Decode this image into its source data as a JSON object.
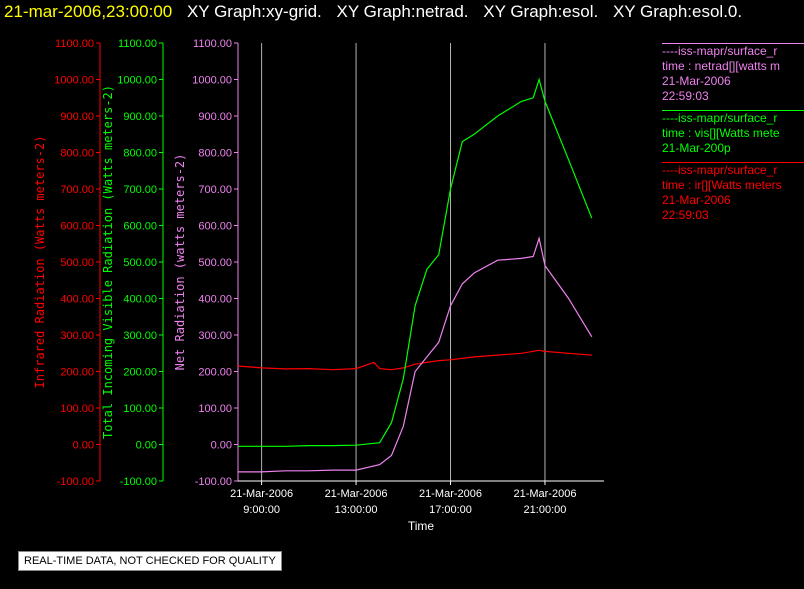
{
  "header": {
    "timestamp": "21-mar-2006,23:00:00",
    "graphs": [
      "XY Graph:xy-grid.",
      "XY Graph:netrad.",
      "XY Graph:esol.",
      "XY Graph:esol.0."
    ]
  },
  "footer": {
    "quality_note": "REAL-TIME DATA, NOT CHECKED FOR QUALITY"
  },
  "colors": {
    "ir": "#ff0000",
    "vis": "#00ff00",
    "net": "#ee82ee",
    "axis": "#ffffff",
    "grid": "#b3b3b3"
  },
  "legend": [
    {
      "color": "#ee82ee",
      "lines": [
        "----iss-mapr/surface_r",
        "time : netrad[][watts m",
        "21-Mar-2006",
        "22:59:03"
      ]
    },
    {
      "color": "#00ff00",
      "lines": [
        "----iss-mapr/surface_r",
        "time : vis[][Watts mete",
        "21-Mar-200p"
      ]
    },
    {
      "color": "#ff0000",
      "lines": [
        "----iss-mapr/surface_r",
        "time : ir[][Watts meters",
        "21-Mar-2006",
        "22:59:03"
      ]
    }
  ],
  "chart_data": {
    "type": "line",
    "xlabel": "Time",
    "xlim": [
      "2006-03-21T08:00",
      "2006-03-21T23:30"
    ],
    "x_ticks": [
      {
        "value": "2006-03-21T09:00",
        "date": "21-Mar-2006",
        "time": "9:00:00"
      },
      {
        "value": "2006-03-21T13:00",
        "date": "21-Mar-2006",
        "time": "13:00:00"
      },
      {
        "value": "2006-03-21T17:00",
        "date": "21-Mar-2006",
        "time": "17:00:00"
      },
      {
        "value": "2006-03-21T21:00",
        "date": "21-Mar-2006",
        "time": "21:00:00"
      }
    ],
    "y_axes": [
      {
        "label": "Infrared Radiation (Watts meters-2)",
        "color": "#ff0000",
        "ylim": [
          -100,
          1100
        ],
        "ticks": [
          "-100.00",
          "0.00",
          "100.00",
          "200.00",
          "300.00",
          "400.00",
          "500.00",
          "600.00",
          "700.00",
          "800.00",
          "900.00",
          "1000.00",
          "1100.00"
        ]
      },
      {
        "label": "Total Incoming Visible Radiation (Watts meters-2)",
        "color": "#00ff00",
        "ylim": [
          -100,
          1100
        ],
        "ticks": [
          "-100.00",
          "0.00",
          "100.00",
          "200.00",
          "300.00",
          "400.00",
          "500.00",
          "600.00",
          "700.00",
          "800.00",
          "900.00",
          "1000.00",
          "1100.00"
        ]
      },
      {
        "label": "Net Radiation (watts meters-2)",
        "color": "#ee82ee",
        "ylim": [
          -100,
          1100
        ],
        "ticks": [
          "-100.00",
          "0.00",
          "100.00",
          "200.00",
          "300.00",
          "400.00",
          "500.00",
          "600.00",
          "700.00",
          "800.00",
          "900.00",
          "1000.00",
          "1100.00"
        ]
      }
    ],
    "grid": {
      "vertical": true,
      "horizontal": false
    },
    "series": [
      {
        "color": "#ff0000",
        "axis": 0,
        "x": [
          "2006-03-21T08:00",
          "2006-03-21T09:00",
          "2006-03-21T10:00",
          "2006-03-21T11:00",
          "2006-03-21T12:00",
          "2006-03-21T13:00",
          "2006-03-21T13:45",
          "2006-03-21T14:00",
          "2006-03-21T14:30",
          "2006-03-21T15:00",
          "2006-03-21T15:30",
          "2006-03-21T16:00",
          "2006-03-21T16:30",
          "2006-03-21T17:00",
          "2006-03-21T18:00",
          "2006-03-21T19:00",
          "2006-03-21T20:00",
          "2006-03-21T20:45",
          "2006-03-21T21:00",
          "2006-03-21T22:00",
          "2006-03-21T22:59"
        ],
        "y": [
          215,
          210,
          207,
          208,
          205,
          208,
          225,
          208,
          205,
          210,
          220,
          225,
          230,
          232,
          240,
          245,
          250,
          258,
          255,
          250,
          245
        ]
      },
      {
        "color": "#00ff00",
        "axis": 1,
        "x": [
          "2006-03-21T08:00",
          "2006-03-21T09:00",
          "2006-03-21T10:00",
          "2006-03-21T11:00",
          "2006-03-21T12:00",
          "2006-03-21T13:00",
          "2006-03-21T14:00",
          "2006-03-21T14:30",
          "2006-03-21T15:00",
          "2006-03-21T15:30",
          "2006-03-21T16:00",
          "2006-03-21T16:30",
          "2006-03-21T17:00",
          "2006-03-21T17:30",
          "2006-03-21T18:00",
          "2006-03-21T19:00",
          "2006-03-21T20:00",
          "2006-03-21T20:30",
          "2006-03-21T20:45",
          "2006-03-21T21:00",
          "2006-03-21T22:00",
          "2006-03-21T22:59"
        ],
        "y": [
          -5,
          -5,
          -5,
          -3,
          -3,
          -2,
          5,
          60,
          180,
          380,
          480,
          520,
          700,
          830,
          850,
          900,
          940,
          950,
          1000,
          940,
          780,
          620
        ]
      },
      {
        "color": "#ee82ee",
        "axis": 2,
        "x": [
          "2006-03-21T08:00",
          "2006-03-21T09:00",
          "2006-03-21T10:00",
          "2006-03-21T11:00",
          "2006-03-21T12:00",
          "2006-03-21T13:00",
          "2006-03-21T14:00",
          "2006-03-21T14:30",
          "2006-03-21T15:00",
          "2006-03-21T15:30",
          "2006-03-21T16:00",
          "2006-03-21T16:30",
          "2006-03-21T17:00",
          "2006-03-21T17:30",
          "2006-03-21T18:00",
          "2006-03-21T19:00",
          "2006-03-21T20:00",
          "2006-03-21T20:30",
          "2006-03-21T20:45",
          "2006-03-21T21:00",
          "2006-03-21T22:00",
          "2006-03-21T22:59"
        ],
        "y": [
          -75,
          -75,
          -72,
          -72,
          -70,
          -70,
          -55,
          -30,
          50,
          200,
          240,
          280,
          380,
          440,
          470,
          505,
          510,
          515,
          565,
          490,
          400,
          295
        ]
      }
    ]
  }
}
